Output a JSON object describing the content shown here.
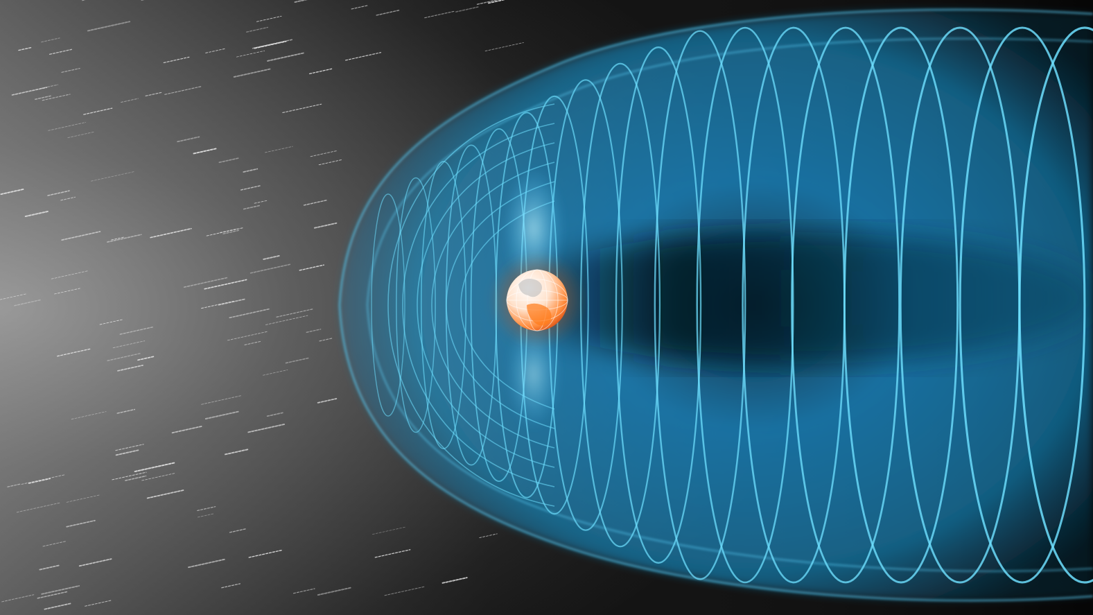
{
  "scene": {
    "subject": "magnetosphere-illustration",
    "colors": {
      "background_dark": "#0a0a0a",
      "background_light": "#9a9a9a",
      "field_blue": "#1aa0e0",
      "field_line": "#6fe0ff",
      "earth_core": "#ff6a1a",
      "earth_highlight": "#ffffff"
    },
    "elements": [
      "solar-wind-streaks",
      "magnetosphere-envelope",
      "magnetic-field-lines",
      "earth-globe",
      "magnetotail-glow"
    ]
  }
}
